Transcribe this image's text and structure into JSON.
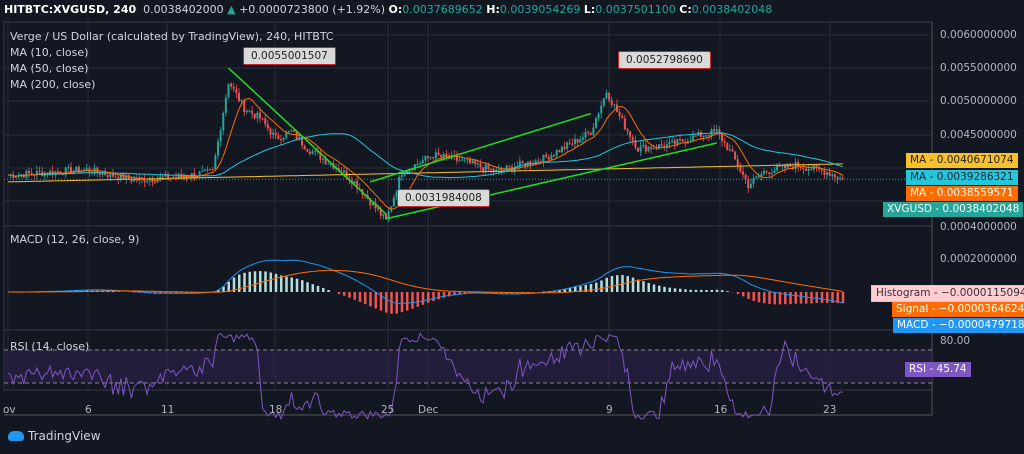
{
  "header": {
    "symbol": "HITBTC:XVGUSD, 240",
    "last": "0.0038402000",
    "change": "+0.0000723800 (+1.92%)",
    "o_label": "O:",
    "o": "0.0037689652",
    "h_label": "H:",
    "h": "0.0039054269",
    "l_label": "L:",
    "l": "0.0037501100",
    "c_label": "C:",
    "c": "0.0038402048",
    "up_icon": "triangle-up-icon"
  },
  "legend": {
    "title": "Verge / US Dollar (calculated by TradingView), 240, HITBTC",
    "ma10": "MA (10, close)",
    "ma50": "MA (50, close)",
    "ma200": "MA (200, close)",
    "macd": "MACD (12, 26, close, 9)",
    "rsi": "RSI (14, close)"
  },
  "annotations": [
    "0.0055001507",
    "0.0052798690",
    "0.0031984008"
  ],
  "price_axis": [
    "0.0060000000",
    "0.0055000000",
    "0.0050000000",
    "0.0045000000"
  ],
  "price_tags": [
    {
      "label": "MA",
      "value": "0.0040671074",
      "color": "#f9c02e"
    },
    {
      "label": "MA",
      "value": "0.0039286321",
      "color": "#26c6da"
    },
    {
      "label": "MA",
      "value": "0.0038559571",
      "color": "#ff6d00"
    },
    {
      "label": "XVGUSD",
      "value": "0.0038402048",
      "color": "#26a69a"
    }
  ],
  "macd_axis": [
    "0.0004000000",
    "0.0002000000"
  ],
  "macd_tags": [
    {
      "label": "Histogram",
      "value": "−0.0000115094",
      "color": "#ffcdd2"
    },
    {
      "label": "Signal",
      "value": "−0.0000364624",
      "color": "#ff6d00"
    },
    {
      "label": "MACD",
      "value": "−0.0000479718",
      "color": "#2196f3"
    }
  ],
  "rsi_axis": [
    "80.00"
  ],
  "rsi_tag": {
    "label": "RSI",
    "value": "45.74",
    "color": "#7e57c2"
  },
  "date_axis": [
    "ov",
    "6",
    "11",
    "18",
    "25",
    "Dec",
    "9",
    "16",
    "23"
  ],
  "brand": "TradingView",
  "colors": {
    "up": "#26a69a",
    "down": "#ef5350",
    "trend": "#22dd22",
    "ma10": "#ff6d00",
    "ma50": "#26c6da",
    "ma200": "#f9c02e",
    "rsi": "#7e57c2"
  },
  "chart_data": {
    "type": "candlestick",
    "title": "Verge / US Dollar (calculated by TradingView), 240, HITBTC",
    "ylim": [
      0.0031,
      0.0061
    ],
    "x": [
      "Nov 1",
      "Nov 4",
      "Nov 6",
      "Nov 9",
      "Nov 12",
      "Nov 14",
      "Nov 15",
      "Nov 16",
      "Nov 17",
      "Nov 18",
      "Nov 19",
      "Nov 20",
      "Nov 22",
      "Nov 23",
      "Nov 25",
      "Nov 26",
      "Nov 28",
      "Nov 30",
      "Dec 2",
      "Dec 5",
      "Dec 7",
      "Dec 8",
      "Dec 9",
      "Dec 10",
      "Dec 11",
      "Dec 13",
      "Dec 15",
      "Dec 16",
      "Dec 17",
      "Dec 18",
      "Dec 19",
      "Dec 21",
      "Dec 23",
      "Dec 24"
    ],
    "close": [
      0.0039,
      0.00395,
      0.00398,
      0.00383,
      0.00388,
      0.00395,
      0.0053,
      0.0049,
      0.00475,
      0.00445,
      0.00455,
      0.0043,
      0.004,
      0.0038,
      0.00322,
      0.00395,
      0.0042,
      0.0041,
      0.00395,
      0.00415,
      0.0044,
      0.00455,
      0.00515,
      0.0047,
      0.0043,
      0.00435,
      0.0045,
      0.00455,
      0.0042,
      0.00375,
      0.00395,
      0.00405,
      0.00395,
      0.00384
    ],
    "idx": [
      0,
      3,
      5,
      8,
      11,
      13,
      14,
      15,
      16,
      17,
      18,
      19,
      21,
      22,
      24,
      25,
      27,
      29,
      31,
      34,
      36,
      37,
      38,
      39,
      40,
      42,
      44,
      45,
      46,
      47,
      48,
      50,
      52,
      53
    ],
    "trendlines": [
      {
        "from": [
          "Nov 15",
          0.0055
        ],
        "to": [
          "Nov 25",
          0.00332
        ]
      },
      {
        "from": [
          "Nov 24",
          0.0038
        ],
        "to": [
          "Dec 8",
          0.00482
        ]
      },
      {
        "from": [
          "Nov 25",
          0.00325
        ],
        "to": [
          "Dec 16",
          0.00438
        ]
      }
    ]
  }
}
